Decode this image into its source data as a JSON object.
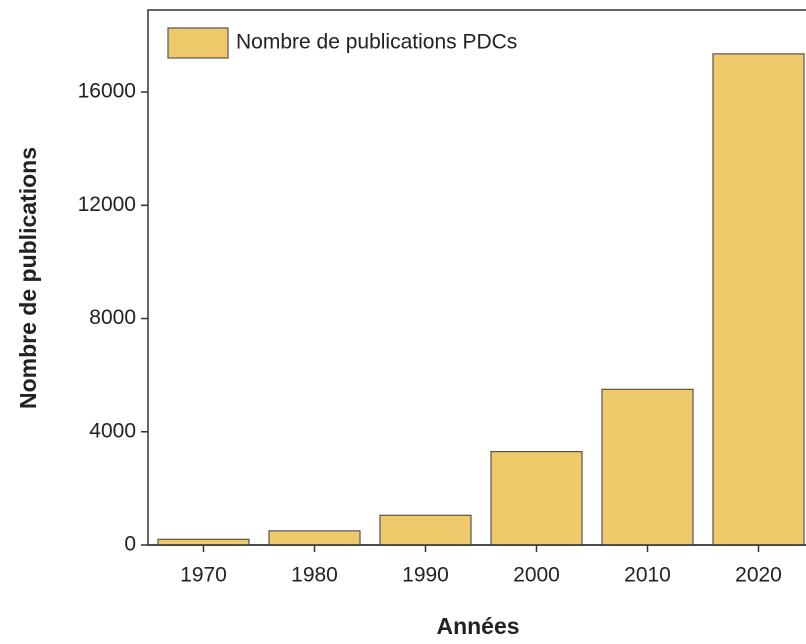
{
  "chart_data": {
    "type": "bar",
    "x_label": "Années",
    "y_label": "Nombre de publications",
    "categories": [
      "1970",
      "1980",
      "1990",
      "2000",
      "2010",
      "2020"
    ],
    "series": [
      {
        "name": "Nombre de publications PDCs",
        "color": "#f0c96b",
        "values": [
          200,
          500,
          1050,
          3300,
          5500,
          17350
        ]
      }
    ],
    "ylim": [
      0,
      18900
    ],
    "yticks": [
      0,
      4000,
      8000,
      12000,
      16000
    ],
    "legend": "upper left"
  }
}
